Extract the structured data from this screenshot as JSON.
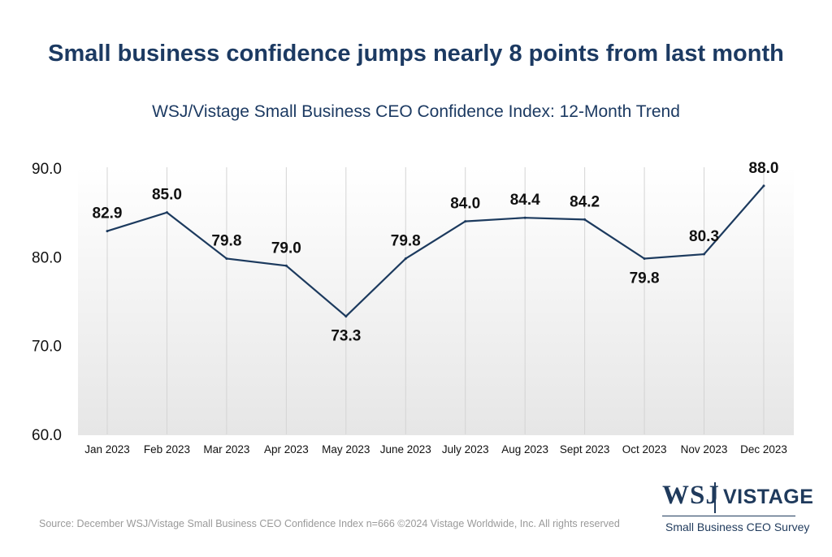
{
  "header": {
    "headline": "Small business confidence jumps nearly 8 points from last month"
  },
  "chart_data": {
    "type": "line",
    "title": "WSJ/Vistage Small Business CEO Confidence Index: 12-Month Trend",
    "categories": [
      "Jan 2023",
      "Feb 2023",
      "Mar 2023",
      "Apr 2023",
      "May 2023",
      "June 2023",
      "July 2023",
      "Aug 2023",
      "Sept 2023",
      "Oct 2023",
      "Nov 2023",
      "Dec 2023"
    ],
    "series": [
      {
        "values": [
          82.9,
          85.0,
          79.8,
          79.0,
          73.3,
          79.8,
          84.0,
          84.4,
          84.2,
          79.8,
          80.3,
          88.0
        ]
      }
    ],
    "data_labels": [
      "82.9",
      "85.0",
      "79.8",
      "79.0",
      "73.3",
      "79.8",
      "84.0",
      "84.4",
      "84.2",
      "79.8",
      "80.3",
      "88.0"
    ],
    "label_position": [
      "above",
      "above",
      "above",
      "above",
      "below",
      "above",
      "above",
      "above",
      "above",
      "below",
      "above",
      "above"
    ],
    "ylim": [
      60,
      90
    ],
    "yticks": [
      60,
      70,
      80,
      90
    ],
    "ytick_labels": [
      "60.0",
      "70.0",
      "80.0",
      "90.0"
    ],
    "xlabel": "",
    "ylabel": "",
    "grid": "vertical",
    "line_color": "#1c3a5e",
    "grid_color": "#d4d4d4"
  },
  "footer": {
    "source": "Source: December WSJ/Vistage Small Business CEO Confidence Index n=666 ©2024 Vistage Worldwide, Inc. All rights reserved"
  },
  "logo": {
    "wsj": "WSJ",
    "vistage": "VISTAGE",
    "tagline": "Small Business CEO Survey"
  }
}
